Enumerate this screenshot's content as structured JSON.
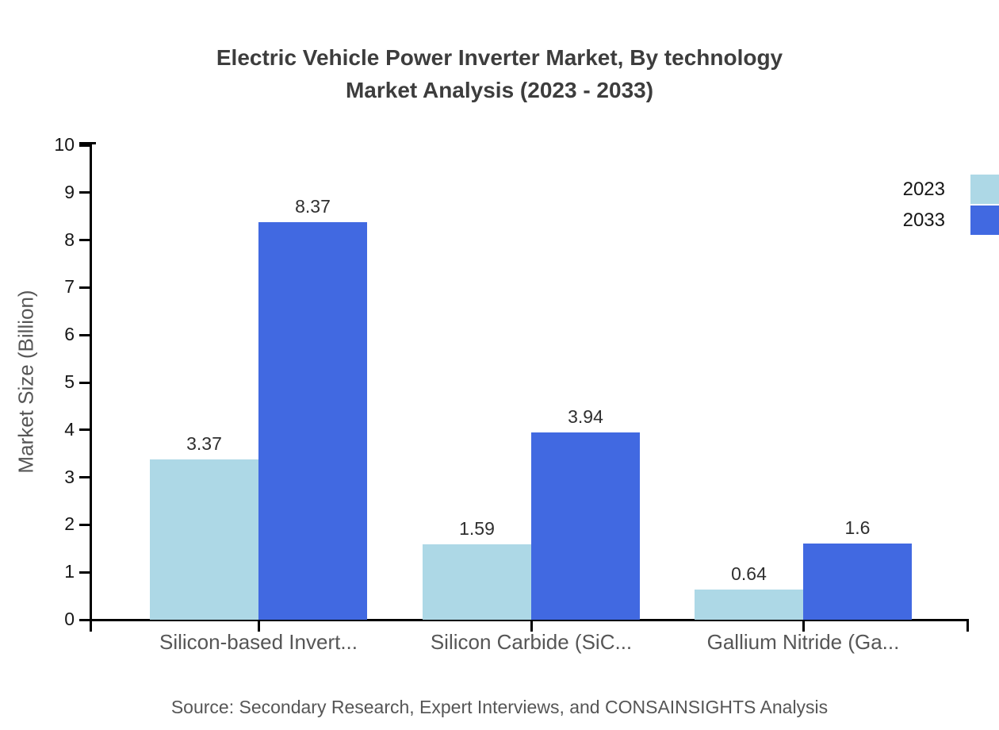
{
  "page": {
    "background": "#ffffff"
  },
  "title": {
    "line1": "Electric Vehicle Power Inverter Market, By technology",
    "line2": "Market Analysis (2023 - 2033)"
  },
  "legend": {
    "position": "top-right",
    "items": [
      {
        "label": "2023",
        "color": "#ADD8E6"
      },
      {
        "label": "2033",
        "color": "#4169E1"
      }
    ]
  },
  "source": "Source: Secondary Research, Expert Interviews, and CONSAINSIGHTS Analysis",
  "chart_data": {
    "type": "bar",
    "title": "Electric Vehicle Power Inverter Market, By technology Market Analysis (2023 - 2033)",
    "categories": [
      "Silicon-based Invert...",
      "Silicon Carbide (SiC...",
      "Gallium Nitride (Ga..."
    ],
    "series": [
      {
        "name": "2023",
        "color": "#ADD8E6",
        "values": [
          3.37,
          1.59,
          0.64
        ],
        "labels": [
          "3.37",
          "1.59",
          "0.64"
        ]
      },
      {
        "name": "2033",
        "color": "#4169E1",
        "values": [
          8.37,
          3.94,
          1.6
        ],
        "labels": [
          "8.37",
          "3.94",
          "1.6"
        ]
      }
    ],
    "xlabel": "",
    "ylabel": "Market Size (Billion)",
    "ylim": [
      0,
      10
    ],
    "yticks": [
      0,
      1,
      2,
      3,
      4,
      5,
      6,
      7,
      8,
      9,
      10
    ],
    "grid": false,
    "legend_position": "top-right",
    "axis_color": "#000000"
  }
}
